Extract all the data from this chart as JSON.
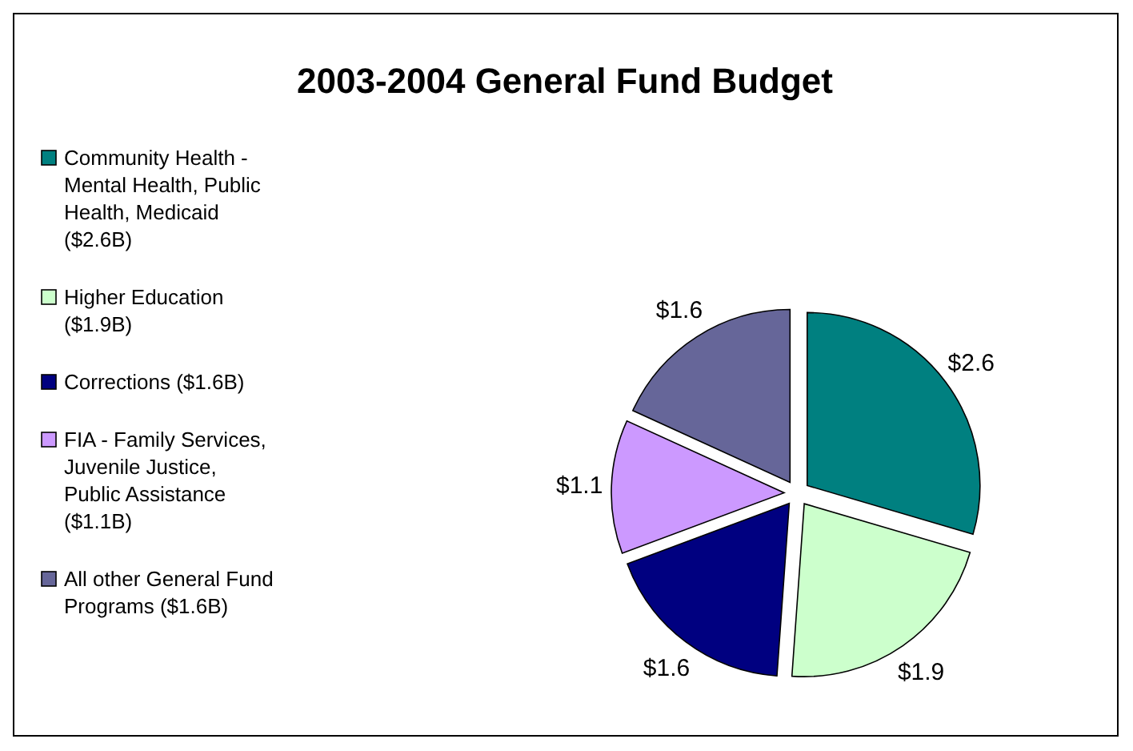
{
  "chart_data": {
    "type": "pie",
    "title": "2003-2004 General Fund Budget",
    "categories": [
      "Community Health - Mental Health, Public Health, Medicaid ($2.6B)",
      "Higher Education ($1.9B)",
      "Corrections ($1.6B)",
      "FIA - Family Services, Juvenile Justice, Public Assistance ($1.1B)",
      "All other General Fund Programs ($1.6B)"
    ],
    "values": [
      2.6,
      1.9,
      1.6,
      1.1,
      1.6
    ],
    "value_labels": [
      "$2.6",
      "$1.9",
      "$1.6",
      "$1.1",
      "$1.6"
    ],
    "colors": [
      "#008080",
      "#ccffcc",
      "#000080",
      "#cc99ff",
      "#666699"
    ],
    "legend": "left"
  }
}
